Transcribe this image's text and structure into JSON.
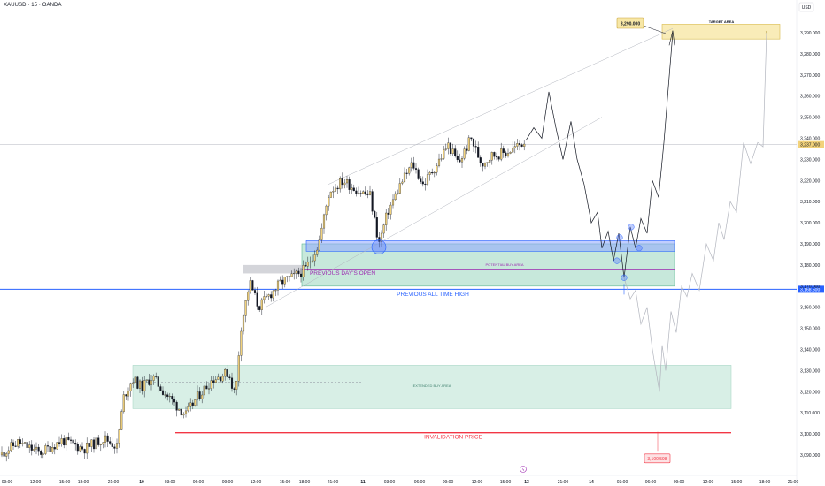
{
  "header": {
    "symbol": "XAUUSD · 15 · OANDA",
    "currency": "USD"
  },
  "colors": {
    "bull": "#f2d27a",
    "bear": "#131722",
    "blue_line": "#2962ff",
    "red_line": "#f23645",
    "zone_green": "#8fd1b8",
    "zone_blue": "#8ea6ff",
    "purple": "#9c27b0",
    "target_fill": "#f7e7a6"
  },
  "annotations": {
    "target_area": "TARGET AREA",
    "target_price": "3,290.000",
    "previous_days_open": "PREVIOUS DAY'S OPEN",
    "potential_buy_area": "POTENTIAL BUY AREA",
    "previous_ath": "PREVIOUS ALL TIME HIGH",
    "ath_price": "3,168.500",
    "extended_buy_area": "EXTENDED BUY AREA",
    "invalidation_price": "INVALIDATION PRICE",
    "invalidation_value": "3,100.598",
    "current_price_tag": "3,237.000"
  },
  "chart_data": {
    "type": "candlestick",
    "symbol": "XAUUSD",
    "timeframe": "15",
    "y_ticks": [
      "3,290.000",
      "3,280.000",
      "3,270.000",
      "3,260.000",
      "3,250.000",
      "3,240.000",
      "3,230.000",
      "3,220.000",
      "3,210.000",
      "3,200.000",
      "3,190.000",
      "3,180.000",
      "3,170.000",
      "3,160.000",
      "3,150.000",
      "3,140.000",
      "3,130.000",
      "3,120.000",
      "3,110.000",
      "3,100.000",
      "3,090.000"
    ],
    "x_ticks": [
      "09:00",
      "12:00",
      "15:00",
      "18:00",
      "21:00",
      "10",
      "03:00",
      "06:00",
      "09:00",
      "12:00",
      "15:00",
      "18:00",
      "21:00",
      "11",
      "03:00",
      "06:00",
      "09:00",
      "12:00",
      "15:00",
      "13",
      "21:00",
      "14",
      "03:00",
      "06:00",
      "09:00",
      "12:00",
      "15:00",
      "18:00",
      "21:00"
    ],
    "ylim": [
      3084,
      3302
    ],
    "levels": {
      "previous_all_time_high": 3168.5,
      "invalidation": 3100.598,
      "target": 3290.0,
      "current_price": 3237.0
    },
    "zones": [
      {
        "label": "POTENTIAL BUY AREA",
        "top": 3190,
        "bottom": 3170
      },
      {
        "label": "EXTENDED BUY AREA",
        "top": 3132,
        "bottom": 3112
      },
      {
        "label": "TARGET AREA",
        "top": 3294,
        "bottom": 3287
      }
    ]
  }
}
